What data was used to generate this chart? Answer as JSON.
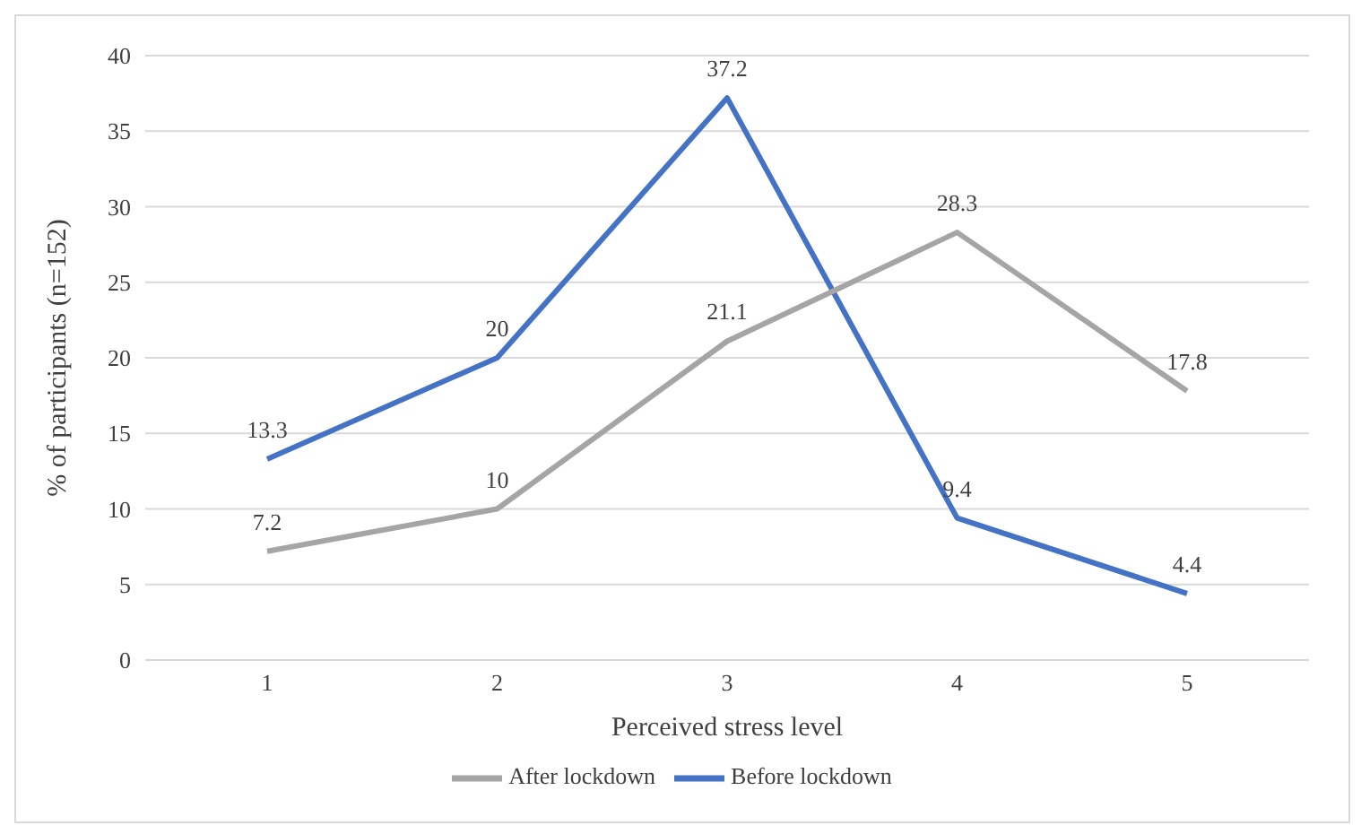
{
  "chart_data": {
    "type": "line",
    "xlabel": "Perceived stress level",
    "ylabel": "% of participants (n=152)",
    "categories": [
      "1",
      "2",
      "3",
      "4",
      "5"
    ],
    "series": [
      {
        "name": "Before lockdown",
        "color": "#4472c4",
        "values": [
          13.3,
          20,
          37.2,
          9.4,
          4.4
        ]
      },
      {
        "name": "After lockdown",
        "color": "#a5a5a5",
        "values": [
          7.2,
          10,
          21.1,
          28.3,
          17.8
        ]
      }
    ],
    "ylim": [
      0,
      40
    ],
    "yticks": [
      0,
      5,
      10,
      15,
      20,
      25,
      30,
      35,
      40
    ],
    "grid": "y",
    "legend": "bottom",
    "marker": "none",
    "line_style": "solid",
    "data_labels": true
  }
}
